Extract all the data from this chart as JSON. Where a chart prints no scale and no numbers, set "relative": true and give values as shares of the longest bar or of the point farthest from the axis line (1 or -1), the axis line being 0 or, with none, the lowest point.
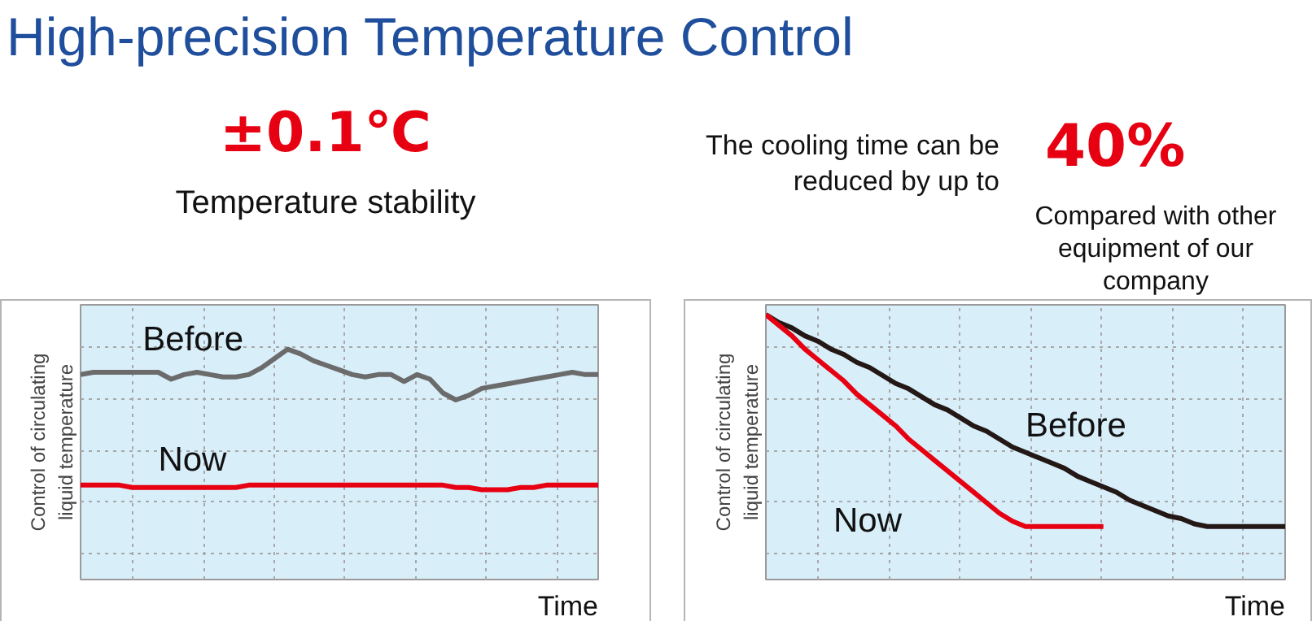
{
  "chart_data": [
    {
      "type": "line",
      "title": "High-precision Temperature Control",
      "annotations": [
        "±0.1℃",
        "Temperature stability"
      ],
      "relative": true,
      "xlabel": "Time",
      "ylabel": "Control of circulating liquid temperature",
      "grid": true,
      "line_style": "solid",
      "categories": [
        null,
        null,
        null,
        null,
        null,
        null,
        null,
        null,
        null,
        null,
        null,
        null,
        null,
        null,
        null,
        null,
        null,
        null,
        null,
        null,
        null,
        null,
        null,
        null,
        null,
        null,
        null,
        null,
        null,
        null,
        null,
        null,
        null,
        null,
        null,
        null,
        null,
        null,
        null,
        null,
        null
      ],
      "series": [
        {
          "name": "Before",
          "color": "#6b6b6b",
          "values": [
            0.89,
            0.9,
            0.9,
            0.9,
            0.9,
            0.9,
            0.9,
            0.87,
            0.89,
            0.9,
            0.89,
            0.88,
            0.88,
            0.89,
            0.92,
            0.96,
            1.0,
            0.98,
            0.95,
            0.93,
            0.91,
            0.89,
            0.88,
            0.89,
            0.89,
            0.86,
            0.89,
            0.87,
            0.81,
            0.78,
            0.8,
            0.83,
            0.84,
            0.85,
            0.86,
            0.87,
            0.88,
            0.89,
            0.9,
            0.89,
            0.89
          ]
        },
        {
          "name": "Now",
          "color": "#e60012",
          "values": [
            0.41,
            0.41,
            0.41,
            0.41,
            0.4,
            0.4,
            0.4,
            0.4,
            0.4,
            0.4,
            0.4,
            0.4,
            0.4,
            0.41,
            0.41,
            0.41,
            0.41,
            0.41,
            0.41,
            0.41,
            0.41,
            0.41,
            0.41,
            0.41,
            0.41,
            0.41,
            0.41,
            0.41,
            0.41,
            0.4,
            0.4,
            0.39,
            0.39,
            0.39,
            0.4,
            0.4,
            0.41,
            0.41,
            0.41,
            0.41,
            0.41
          ]
        }
      ]
    },
    {
      "type": "line",
      "annotations": [
        "The cooling time can be reduced by up to",
        "40%",
        "Compared with other equipment of our company"
      ],
      "relative": true,
      "xlabel": "Time",
      "ylabel": "Control of circulating liquid temperature",
      "grid": true,
      "line_style": "solid",
      "categories": [
        null,
        null,
        null,
        null,
        null,
        null,
        null,
        null,
        null,
        null,
        null,
        null,
        null,
        null,
        null,
        null,
        null,
        null,
        null,
        null,
        null,
        null,
        null,
        null,
        null,
        null,
        null,
        null,
        null,
        null,
        null,
        null,
        null,
        null,
        null,
        null,
        null,
        null,
        null,
        null,
        null
      ],
      "series": [
        {
          "name": "Before",
          "color": "#231815",
          "values": [
            1.0,
            0.97,
            0.95,
            0.92,
            0.9,
            0.87,
            0.85,
            0.82,
            0.8,
            0.77,
            0.74,
            0.72,
            0.69,
            0.66,
            0.64,
            0.61,
            0.58,
            0.56,
            0.53,
            0.5,
            0.48,
            0.46,
            0.44,
            0.42,
            0.39,
            0.37,
            0.35,
            0.33,
            0.3,
            0.28,
            0.26,
            0.24,
            0.23,
            0.21,
            0.2,
            0.2,
            0.2,
            0.2,
            0.2,
            0.2,
            0.2
          ]
        },
        {
          "name": "Now",
          "color": "#e60012",
          "values": [
            1.0,
            0.96,
            0.92,
            0.87,
            0.83,
            0.79,
            0.75,
            0.7,
            0.66,
            0.62,
            0.58,
            0.53,
            0.49,
            0.45,
            0.41,
            0.37,
            0.33,
            0.29,
            0.25,
            0.22,
            0.2,
            0.2,
            0.2,
            0.2,
            0.2,
            0.2,
            0.2,
            null,
            null,
            null,
            null,
            null,
            null,
            null,
            null,
            null,
            null,
            null,
            null,
            null,
            null
          ]
        }
      ]
    }
  ]
}
